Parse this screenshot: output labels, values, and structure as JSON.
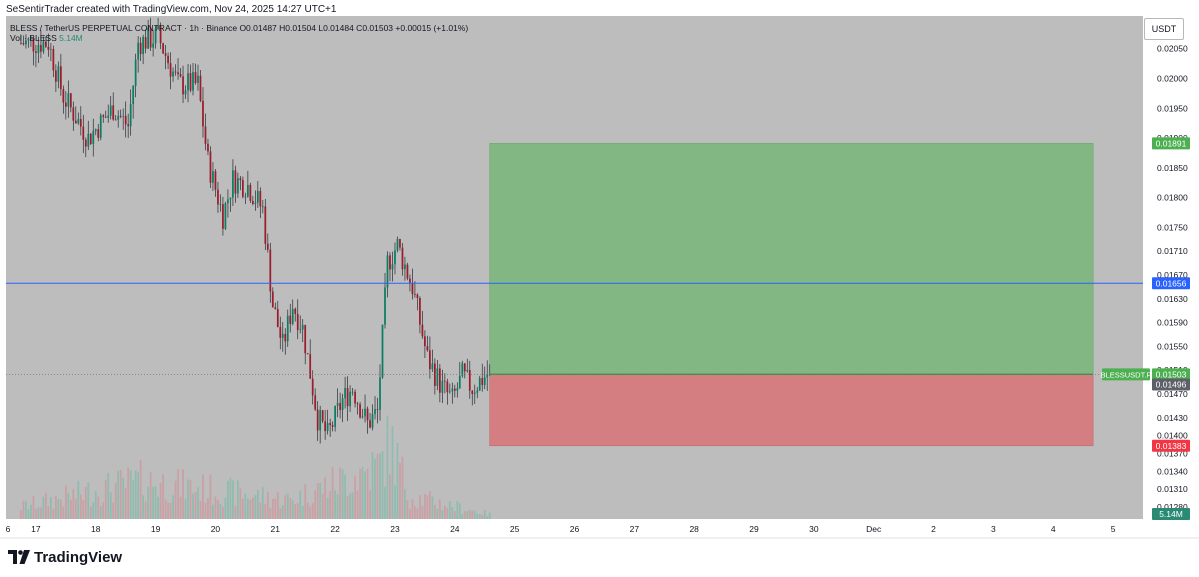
{
  "credit": "SeSentirTrader created with TradingView.com, Nov 24, 2025 14:27 UTC+1",
  "legend": {
    "symbol": "BLESS / TetherUS PERPETUAL CONTRACT · 1h · Binance",
    "ohlc": "O0.01487 H0.01504 L0.01484 C0.01503 +0.00015 (+1.01%)",
    "vol_label": "Vol · BLESS",
    "vol_value": "5.14M"
  },
  "currency_button": "USDT",
  "brand": "TradingView",
  "colors": {
    "background": "#bdbdbd",
    "up": "#0a7d63",
    "down": "#9b1c2a",
    "wick": "#262b33",
    "target_zone": "#82b783",
    "stop_zone": "#d47e81",
    "horizontal_line": "#2962ff",
    "price_badge_green": "#4caf50",
    "price_badge_red": "#f23645"
  },
  "chart_data": {
    "type": "candlestick",
    "timeframe": "1h",
    "x_range": [
      "2025-11-16T12:00",
      "2025-12-05T12:00"
    ],
    "y_range": [
      0.0126,
      0.02105
    ],
    "x_ticks": [
      {
        "t": "2025-11-16T12:00",
        "label": "6"
      },
      {
        "t": "2025-11-17T00:00",
        "label": "17"
      },
      {
        "t": "2025-11-18T00:00",
        "label": "18"
      },
      {
        "t": "2025-11-19T00:00",
        "label": "19"
      },
      {
        "t": "2025-11-20T00:00",
        "label": "20"
      },
      {
        "t": "2025-11-21T00:00",
        "label": "21"
      },
      {
        "t": "2025-11-22T00:00",
        "label": "22"
      },
      {
        "t": "2025-11-23T00:00",
        "label": "23"
      },
      {
        "t": "2025-11-24T00:00",
        "label": "24"
      },
      {
        "t": "2025-11-25T00:00",
        "label": "25"
      },
      {
        "t": "2025-11-26T00:00",
        "label": "26"
      },
      {
        "t": "2025-11-27T00:00",
        "label": "27"
      },
      {
        "t": "2025-11-28T00:00",
        "label": "28"
      },
      {
        "t": "2025-11-29T00:00",
        "label": "29"
      },
      {
        "t": "2025-11-30T00:00",
        "label": "30"
      },
      {
        "t": "2025-12-01T00:00",
        "label": "Dec"
      },
      {
        "t": "2025-12-02T00:00",
        "label": "2"
      },
      {
        "t": "2025-12-03T00:00",
        "label": "3"
      },
      {
        "t": "2025-12-04T00:00",
        "label": "4"
      },
      {
        "t": "2025-12-05T00:00",
        "label": "5"
      }
    ],
    "y_ticks": [
      "0.02050",
      "0.02000",
      "0.01950",
      "0.01900",
      "0.01850",
      "0.01800",
      "0.01750",
      "0.01710",
      "0.01670",
      "0.01630",
      "0.01590",
      "0.01550",
      "0.01510",
      "0.01470",
      "0.01430",
      "0.01400",
      "0.01370",
      "0.01340",
      "0.01310",
      "0.01280"
    ],
    "price_series_path": [
      {
        "t": "2025-11-16T18:00",
        "p": 0.0206
      },
      {
        "t": "2025-11-17T06:00",
        "p": 0.0206
      },
      {
        "t": "2025-11-17T12:00",
        "p": 0.0197
      },
      {
        "t": "2025-11-17T22:00",
        "p": 0.019
      },
      {
        "t": "2025-11-18T08:00",
        "p": 0.0195
      },
      {
        "t": "2025-11-18T14:00",
        "p": 0.0192
      },
      {
        "t": "2025-11-18T18:00",
        "p": 0.0206
      },
      {
        "t": "2025-11-19T02:00",
        "p": 0.0207
      },
      {
        "t": "2025-11-19T10:00",
        "p": 0.0199
      },
      {
        "t": "2025-11-19T18:00",
        "p": 0.0199
      },
      {
        "t": "2025-11-19T22:00",
        "p": 0.0186
      },
      {
        "t": "2025-11-20T04:00",
        "p": 0.0177
      },
      {
        "t": "2025-11-20T08:00",
        "p": 0.0183
      },
      {
        "t": "2025-11-20T14:00",
        "p": 0.0182
      },
      {
        "t": "2025-11-20T20:00",
        "p": 0.0178
      },
      {
        "t": "2025-11-21T00:00",
        "p": 0.0162
      },
      {
        "t": "2025-11-21T04:00",
        "p": 0.0155
      },
      {
        "t": "2025-11-21T08:00",
        "p": 0.0162
      },
      {
        "t": "2025-11-21T12:00",
        "p": 0.0158
      },
      {
        "t": "2025-11-21T18:00",
        "p": 0.0143
      },
      {
        "t": "2025-11-21T22:00",
        "p": 0.014
      },
      {
        "t": "2025-11-22T04:00",
        "p": 0.0146
      },
      {
        "t": "2025-11-22T08:00",
        "p": 0.0148
      },
      {
        "t": "2025-11-22T14:00",
        "p": 0.0142
      },
      {
        "t": "2025-11-22T18:00",
        "p": 0.0144
      },
      {
        "t": "2025-11-22T22:00",
        "p": 0.0169
      },
      {
        "t": "2025-11-23T02:00",
        "p": 0.0172
      },
      {
        "t": "2025-11-23T08:00",
        "p": 0.0165
      },
      {
        "t": "2025-11-23T14:00",
        "p": 0.0153
      },
      {
        "t": "2025-11-23T20:00",
        "p": 0.0148
      },
      {
        "t": "2025-11-24T00:00",
        "p": 0.0146
      },
      {
        "t": "2025-11-24T04:00",
        "p": 0.015
      },
      {
        "t": "2025-11-24T08:00",
        "p": 0.0148
      },
      {
        "t": "2025-11-24T14:00",
        "p": 0.01503
      }
    ],
    "volume_series_path": [
      {
        "t": "2025-11-16T12:00",
        "v": 0.12
      },
      {
        "t": "2025-11-18T18:00",
        "v": 0.5
      },
      {
        "t": "2025-11-21T06:00",
        "v": 0.25
      },
      {
        "t": "2025-11-22T18:00",
        "v": 0.7
      },
      {
        "t": "2025-11-22T22:00",
        "v": 1.0
      },
      {
        "t": "2025-11-23T06:00",
        "v": 0.3
      },
      {
        "t": "2025-11-24T14:00",
        "v": 0.06
      }
    ],
    "volume_last": "5.14M",
    "position": {
      "start": "2025-11-24T14:00",
      "end": "2025-12-04T16:00",
      "entry": 0.01503,
      "target": 0.01891,
      "stop": 0.01383
    },
    "horizontal_line": {
      "price": 0.01656
    },
    "price_labels": [
      {
        "id": "target",
        "price": 0.01891,
        "text": "0.01891"
      },
      {
        "id": "line",
        "price": 0.01656,
        "text": "0.01656"
      },
      {
        "id": "last",
        "price": 0.01503,
        "text": "0.01503",
        "symbol": "BLESSUSDT.P",
        "countdown": "33:00"
      },
      {
        "id": "bid",
        "price": 0.01496,
        "text": "0.01496"
      },
      {
        "id": "stop",
        "price": 0.01383,
        "text": "0.01383"
      }
    ]
  }
}
